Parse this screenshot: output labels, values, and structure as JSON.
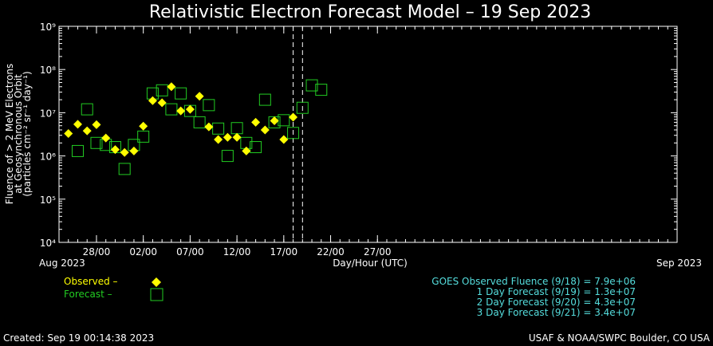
{
  "chart_data": {
    "type": "scatter",
    "title": "Relativistic Electron Forecast Model – 19 Sep 2023",
    "ylabel": [
      "Fluence of > 2 MeV Electrons",
      "at Geosynchronous Orbit",
      "(particles cm⁻² sr⁻¹ day⁻¹)"
    ],
    "xlabel": "Day/Hour (UTC)",
    "y_scale": "log",
    "ylim": [
      10000,
      1000000000
    ],
    "y_tick_labels": [
      "10⁴",
      "10⁵",
      "10⁶",
      "10⁷",
      "10⁸",
      "10⁹"
    ],
    "x_range": [
      "2023-07-24",
      "2023-09-28"
    ],
    "x_ticks": [
      {
        "date": "2023-07-28",
        "label": "28/00"
      },
      {
        "date": "2023-08-02",
        "label": "02/00"
      },
      {
        "date": "2023-08-07",
        "label": "07/00"
      },
      {
        "date": "2023-08-12",
        "label": "12/00"
      },
      {
        "date": "2023-08-17",
        "label": "17/00"
      },
      {
        "date": "2023-08-22",
        "label": "22/00"
      },
      {
        "date": "2023-08-27",
        "label": "27/00"
      }
    ],
    "x_start_label": "Aug 2023",
    "x_end_label": "Sep 2023",
    "vertical_dashed_lines": [
      "2023-08-18",
      "2023-08-19"
    ],
    "grid": false,
    "series": [
      {
        "name": "Observed",
        "marker": "diamond",
        "color": "#ffff00",
        "points": [
          {
            "x": "2023-07-25",
            "y": 3300000
          },
          {
            "x": "2023-07-26",
            "y": 5400000
          },
          {
            "x": "2023-07-27",
            "y": 3800000
          },
          {
            "x": "2023-07-28",
            "y": 5300000
          },
          {
            "x": "2023-07-29",
            "y": 2600000
          },
          {
            "x": "2023-07-30",
            "y": 1400000
          },
          {
            "x": "2023-07-31",
            "y": 1200000
          },
          {
            "x": "2023-08-01",
            "y": 1300000
          },
          {
            "x": "2023-08-02",
            "y": 4900000
          },
          {
            "x": "2023-08-03",
            "y": 19000000
          },
          {
            "x": "2023-08-04",
            "y": 17000000
          },
          {
            "x": "2023-08-05",
            "y": 40000000
          },
          {
            "x": "2023-08-06",
            "y": 11000000
          },
          {
            "x": "2023-08-07",
            "y": 12000000
          },
          {
            "x": "2023-08-08",
            "y": 24000000
          },
          {
            "x": "2023-08-09",
            "y": 4700000
          },
          {
            "x": "2023-08-10",
            "y": 2400000
          },
          {
            "x": "2023-08-11",
            "y": 2700000
          },
          {
            "x": "2023-08-12",
            "y": 2700000
          },
          {
            "x": "2023-08-13",
            "y": 1300000
          },
          {
            "x": "2023-08-14",
            "y": 6000000
          },
          {
            "x": "2023-08-15",
            "y": 4000000
          },
          {
            "x": "2023-08-16",
            "y": 6500000
          },
          {
            "x": "2023-08-17",
            "y": 2400000
          },
          {
            "x": "2023-08-18",
            "y": 7900000
          }
        ]
      },
      {
        "name": "Forecast",
        "marker": "open-square",
        "color": "#22cc22",
        "points": [
          {
            "x": "2023-07-26",
            "y": 1300000
          },
          {
            "x": "2023-07-27",
            "y": 12000000
          },
          {
            "x": "2023-07-28",
            "y": 2000000
          },
          {
            "x": "2023-07-29",
            "y": 1800000
          },
          {
            "x": "2023-07-30",
            "y": 1600000
          },
          {
            "x": "2023-07-31",
            "y": 500000
          },
          {
            "x": "2023-08-01",
            "y": 1800000
          },
          {
            "x": "2023-08-02",
            "y": 2800000
          },
          {
            "x": "2023-08-03",
            "y": 28000000
          },
          {
            "x": "2023-08-04",
            "y": 33000000
          },
          {
            "x": "2023-08-05",
            "y": 12000000
          },
          {
            "x": "2023-08-06",
            "y": 28000000
          },
          {
            "x": "2023-08-07",
            "y": 11000000
          },
          {
            "x": "2023-08-08",
            "y": 6000000
          },
          {
            "x": "2023-08-09",
            "y": 15000000
          },
          {
            "x": "2023-08-10",
            "y": 4300000
          },
          {
            "x": "2023-08-11",
            "y": 1000000
          },
          {
            "x": "2023-08-12",
            "y": 4400000
          },
          {
            "x": "2023-08-13",
            "y": 2000000
          },
          {
            "x": "2023-08-14",
            "y": 1600000
          },
          {
            "x": "2023-08-15",
            "y": 20000000
          },
          {
            "x": "2023-08-16",
            "y": 6000000
          },
          {
            "x": "2023-08-17",
            "y": 6700000
          },
          {
            "x": "2023-08-18",
            "y": 3400000
          },
          {
            "x": "2023-08-19",
            "y": 13000000
          },
          {
            "x": "2023-08-20",
            "y": 43000000
          },
          {
            "x": "2023-08-21",
            "y": 34000000
          }
        ]
      }
    ],
    "legend": {
      "observed_label": "Observed –",
      "forecast_label": "Forecast –",
      "placement": "bottom-left"
    },
    "summary": [
      {
        "text": "GOES Observed Fluence (9/18) = 7.9e+06",
        "color": "#55dddd"
      },
      {
        "text": "1 Day Forecast (9/19) = 1.3e+07",
        "color": "#55dddd"
      },
      {
        "text": "2 Day Forecast (9/20) = 4.3e+07",
        "color": "#55dddd"
      },
      {
        "text": "3 Day Forecast (9/21) = 3.4e+07",
        "color": "#55dddd"
      }
    ]
  },
  "footer": {
    "created": "Created: Sep 19 00:14:38 2023",
    "credit": "USAF & NOAA/SWPC Boulder, CO USA"
  },
  "colors": {
    "background": "#000000",
    "axis": "#ffffff",
    "observed": "#ffff00",
    "forecast": "#22cc22",
    "legend_observed_text": "#ffff00",
    "legend_forecast_text": "#22cc22",
    "summary_text": "#55dddd"
  }
}
